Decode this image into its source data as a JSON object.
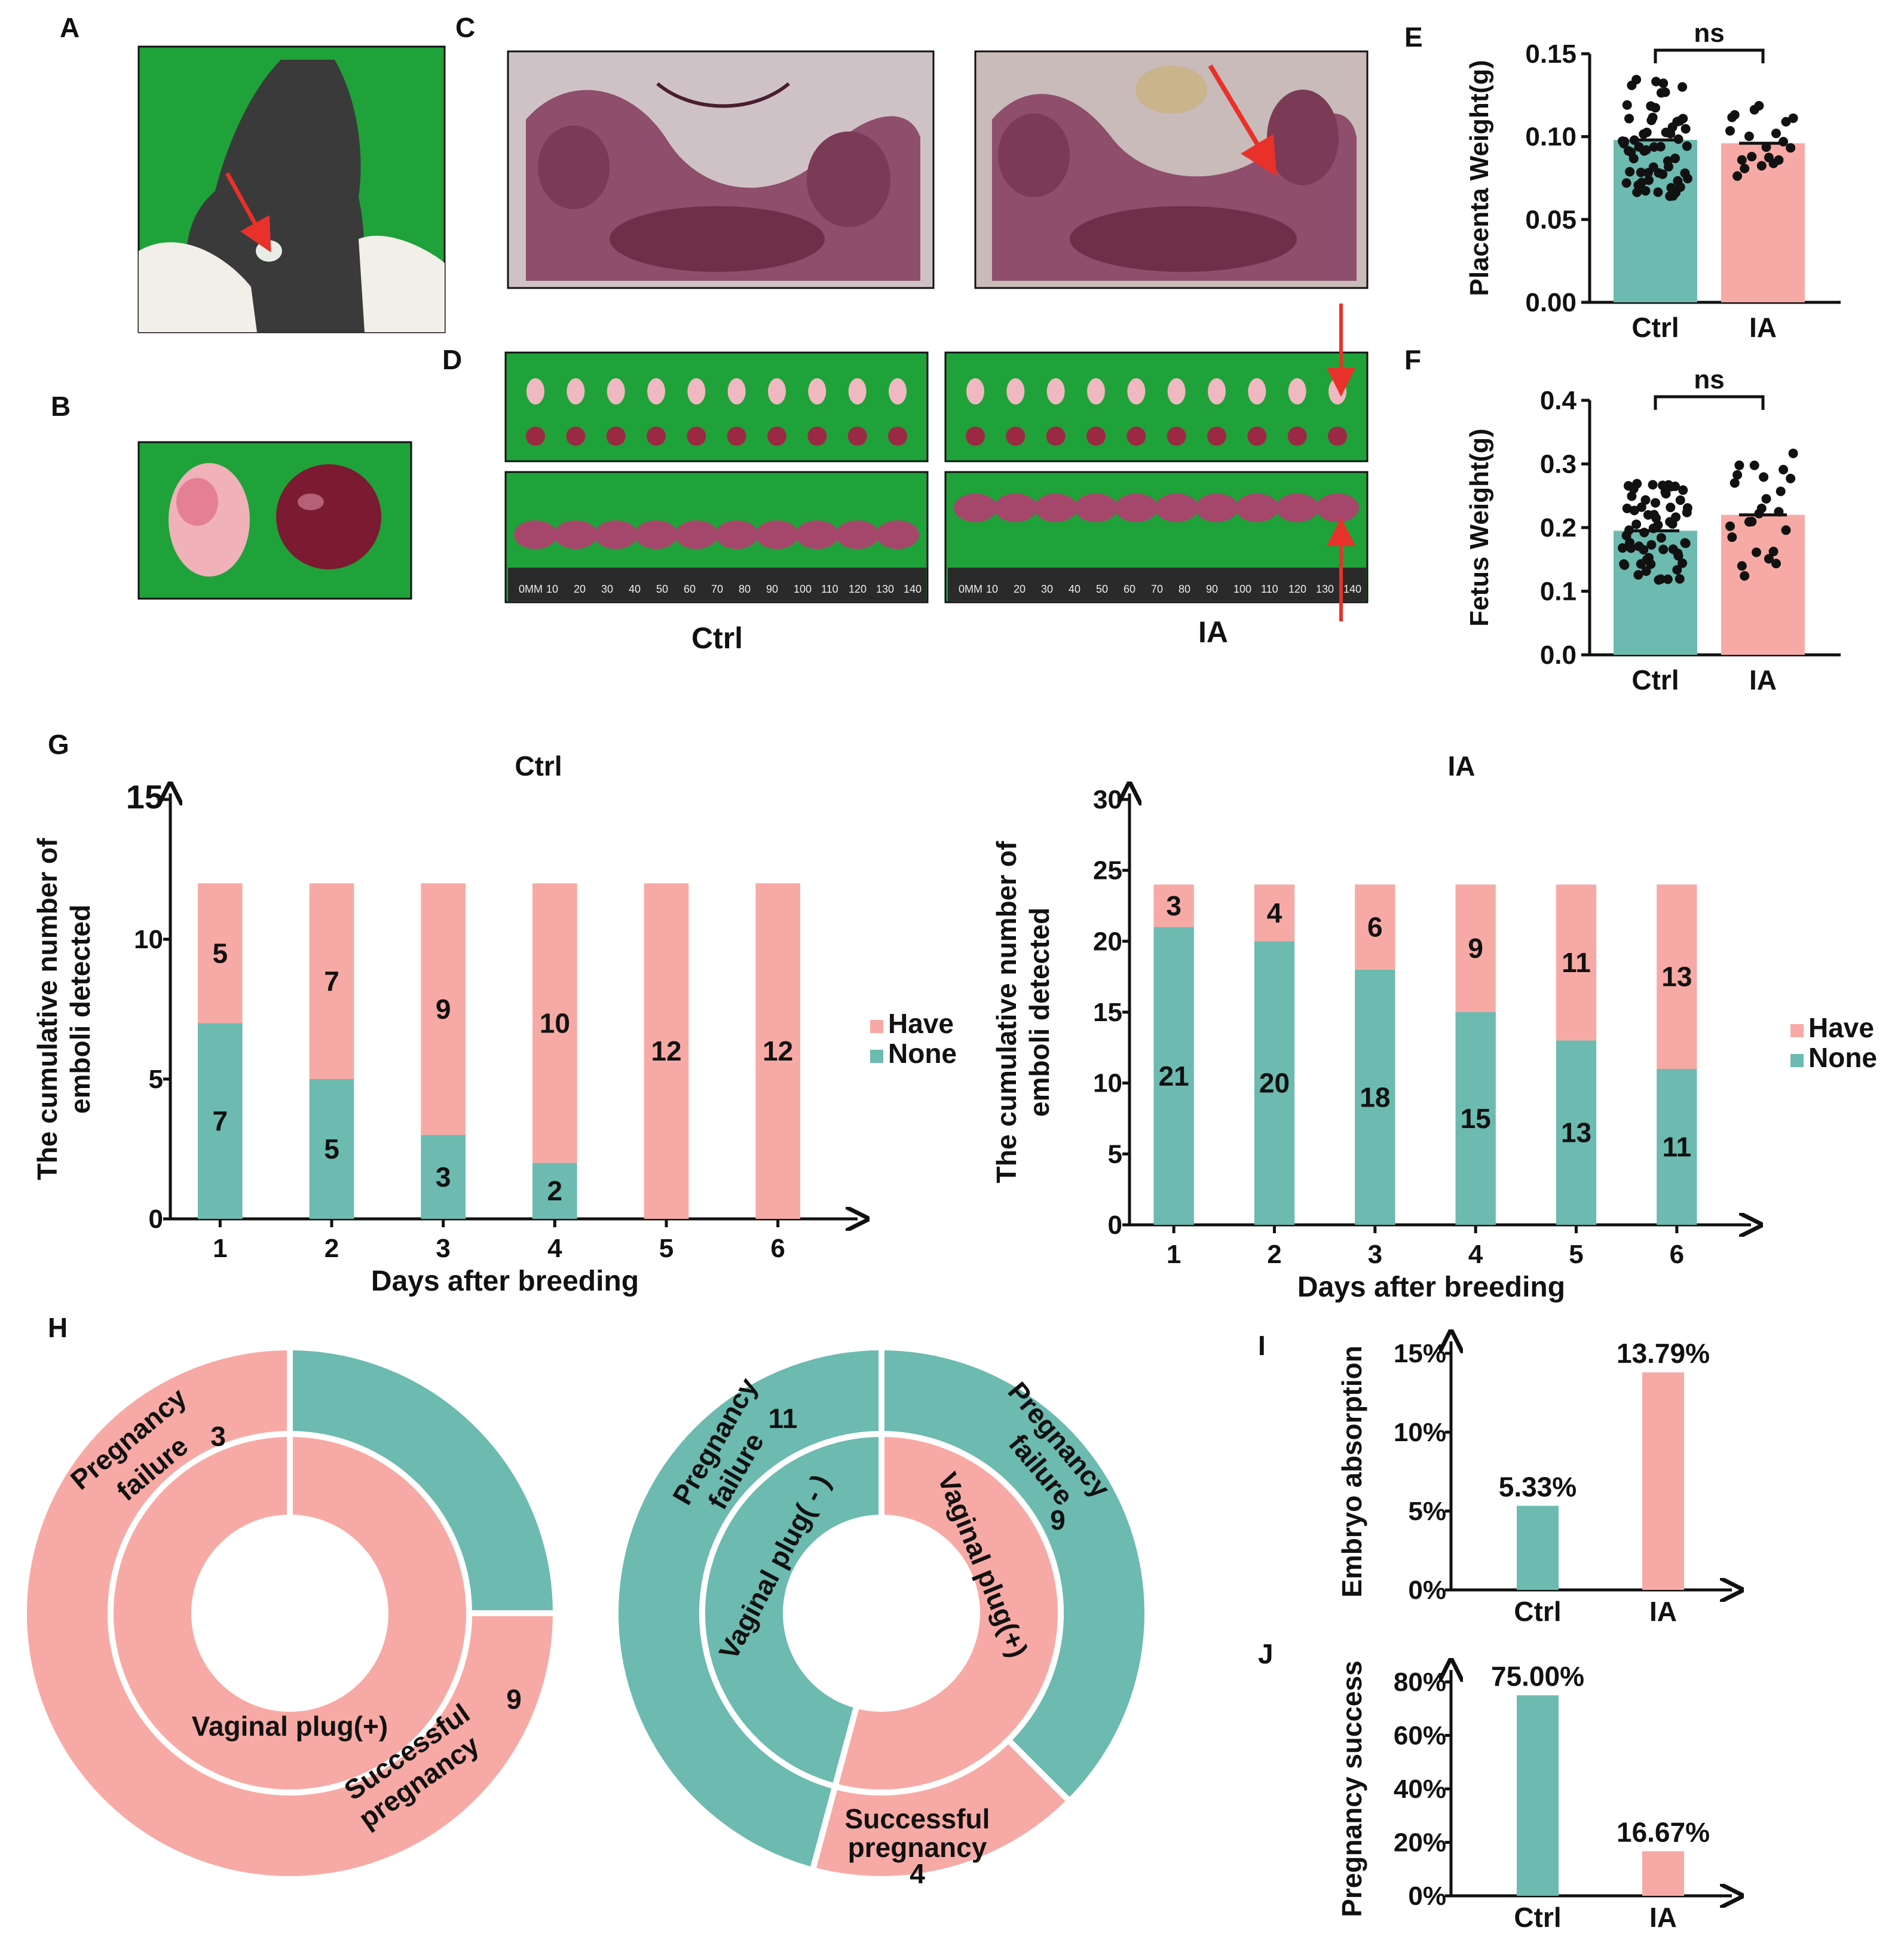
{
  "panel_labels": [
    "A",
    "B",
    "C",
    "D",
    "E",
    "F",
    "G",
    "H",
    "I",
    "J"
  ],
  "colors": {
    "teal": "#6cbab0",
    "pink": "#f7aaa5",
    "green": "#1fa23a",
    "tissue": "#7b3a55",
    "arrow": "#e8312a"
  },
  "photo_captions": {
    "ctrl": "Ctrl",
    "ia": "IA"
  },
  "icons": [
    "mouse-photo",
    "embryo-photo",
    "uterus-photo-ctrl",
    "uterus-photo-ia",
    "fetus-array-photo",
    "ruler-icon",
    "red-arrow-icon"
  ],
  "ruler_ticks": [
    "0MM",
    "10",
    "20",
    "30",
    "40",
    "50",
    "60",
    "70",
    "80",
    "90",
    "100",
    "110",
    "120",
    "130",
    "140"
  ],
  "chart_data": [
    {
      "id": "E",
      "type": "bar",
      "ylabel": "Placenta Weight(g)",
      "categories": [
        "Ctrl",
        "IA"
      ],
      "values": [
        0.098,
        0.096
      ],
      "ylim": [
        0,
        0.15
      ],
      "yticks": [
        "0.00",
        "0.05",
        "0.10",
        "0.15"
      ],
      "significance": "ns"
    },
    {
      "id": "F",
      "type": "bar",
      "ylabel": "Fetus Weight(g)",
      "categories": [
        "Ctrl",
        "IA"
      ],
      "values": [
        0.195,
        0.22
      ],
      "ylim": [
        0,
        0.4
      ],
      "yticks": [
        "0.0",
        "0.1",
        "0.2",
        "0.3",
        "0.4"
      ],
      "significance": "ns"
    },
    {
      "id": "G-ctrl",
      "type": "bar",
      "title": "Ctrl",
      "xlabel": "Days after breeding",
      "ylabel": [
        "The cumulative number of",
        "emboli detected"
      ],
      "categories": [
        "1",
        "2",
        "3",
        "4",
        "5",
        "6"
      ],
      "ylim": [
        0,
        15
      ],
      "yticks": [
        "0",
        "5",
        "10",
        "15"
      ],
      "series": [
        {
          "name": "None",
          "values": [
            7,
            5,
            3,
            2,
            0,
            0
          ],
          "labels": [
            "7",
            "5",
            "3",
            "2",
            "",
            ""
          ]
        },
        {
          "name": "Have",
          "values": [
            5,
            7,
            9,
            10,
            12,
            12
          ],
          "labels": [
            "5",
            "7",
            "9",
            "10",
            "12",
            "12"
          ]
        }
      ],
      "legend": [
        "Have",
        "None"
      ]
    },
    {
      "id": "G-ia",
      "type": "bar",
      "title": "IA",
      "xlabel": "Days after breeding",
      "ylabel": [
        "The cumulative number of",
        "emboli detected"
      ],
      "categories": [
        "1",
        "2",
        "3",
        "4",
        "5",
        "6"
      ],
      "ylim": [
        0,
        30
      ],
      "yticks": [
        "0",
        "5",
        "10",
        "15",
        "20",
        "25",
        "30"
      ],
      "series": [
        {
          "name": "None",
          "values": [
            21,
            20,
            18,
            15,
            13,
            11
          ],
          "labels": [
            "21",
            "20",
            "18",
            "15",
            "13",
            "11"
          ]
        },
        {
          "name": "Have",
          "values": [
            3,
            4,
            6,
            9,
            11,
            13
          ],
          "labels": [
            "3",
            "4",
            "6",
            "9",
            "11",
            "13"
          ]
        }
      ],
      "legend": [
        "Have",
        "None"
      ]
    },
    {
      "id": "H-ctrl",
      "type": "pie",
      "outer": [
        {
          "label": "Pregnancy failure",
          "value": 3,
          "color": "teal"
        },
        {
          "label": "Successful pregnancy",
          "value": 9,
          "color": "pink"
        }
      ],
      "inner": [
        {
          "label": "Vaginal plug(+)",
          "value": 12,
          "color": "pink"
        }
      ]
    },
    {
      "id": "H-ia",
      "type": "pie",
      "outer": [
        {
          "label": "Pregnancy failure",
          "value": 9,
          "color": "teal"
        },
        {
          "label": "Successful pregnancy",
          "value": 4,
          "color": "pink"
        },
        {
          "label": "Pregnancy failure",
          "value": 11,
          "color": "teal"
        }
      ],
      "inner": [
        {
          "label": "Vaginal plug(+)",
          "value": 13,
          "color": "pink"
        },
        {
          "label": "Vaginal plug( - )",
          "value": 11,
          "color": "teal"
        }
      ]
    },
    {
      "id": "I",
      "type": "bar",
      "ylabel": "Embryo absorption",
      "categories": [
        "Ctrl",
        "IA"
      ],
      "values": [
        5.33,
        13.79
      ],
      "value_labels": [
        "5.33%",
        "13.79%"
      ],
      "ylim": [
        0,
        15
      ],
      "yticks": [
        "0%",
        "5%",
        "10%",
        "15%"
      ]
    },
    {
      "id": "J",
      "type": "bar",
      "ylabel": "Pregnancy success",
      "categories": [
        "Ctrl",
        "IA"
      ],
      "values": [
        75.0,
        16.67
      ],
      "value_labels": [
        "75.00%",
        "16.67%"
      ],
      "ylim": [
        0,
        80
      ],
      "yticks": [
        "0%",
        "20%",
        "40%",
        "60%",
        "80%"
      ]
    }
  ]
}
